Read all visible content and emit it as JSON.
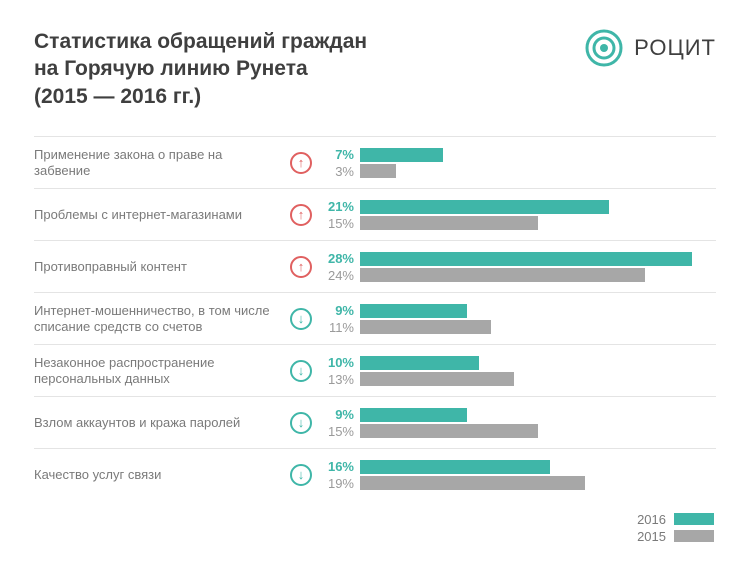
{
  "title": "Статистика обращений граждан\nна Горячую линию Рунета\n(2015 — 2016 гг.)",
  "logo": {
    "text": "РОЦИТ",
    "color": "#3fb6a8"
  },
  "colors": {
    "bar2016": "#3fb6a8",
    "bar2015": "#a7a7a7",
    "up": "#e06060",
    "down": "#3fb6a8",
    "divider": "#e4e4e4",
    "label": "#7a7a7a"
  },
  "chart": {
    "max": 30,
    "rows": [
      {
        "label": "Применение закона о праве на забвение",
        "trend": "up",
        "v2016": 7,
        "v2015": 3
      },
      {
        "label": "Проблемы с интернет-магазинами",
        "trend": "up",
        "v2016": 21,
        "v2015": 15
      },
      {
        "label": "Противоправный контент",
        "trend": "up",
        "v2016": 28,
        "v2015": 24
      },
      {
        "label": "Интернет-мошенничество, в том числе\nсписание средств со счетов",
        "trend": "down",
        "v2016": 9,
        "v2015": 11
      },
      {
        "label": "Незаконное распространение\nперсональных данных",
        "trend": "down",
        "v2016": 10,
        "v2015": 13
      },
      {
        "label": "Взлом аккаунтов и кража паролей",
        "trend": "down",
        "v2016": 9,
        "v2015": 15
      },
      {
        "label": "Качество услуг связи",
        "trend": "down",
        "v2016": 16,
        "v2015": 19
      }
    ]
  },
  "legend": {
    "y2016": "2016",
    "y2015": "2015"
  }
}
